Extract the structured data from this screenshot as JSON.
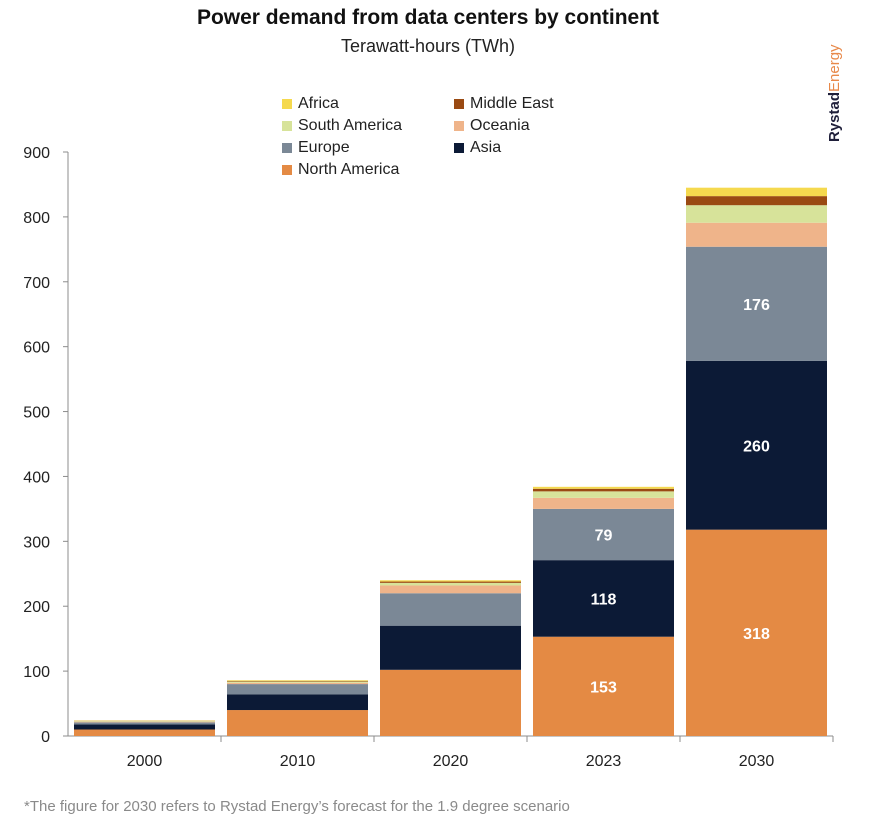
{
  "title": "Power demand from data centers by continent",
  "subtitle": "Terawatt-hours (TWh)",
  "brand": {
    "part1": "Rystad",
    "part2": "Energy"
  },
  "footnote": "*The figure for 2030 refers to Rystad Energy’s forecast for the 1.9 degree scenario",
  "legend": [
    {
      "name": "Africa",
      "color": "#f5d94e"
    },
    {
      "name": "Middle East",
      "color": "#9a4a12"
    },
    {
      "name": "South America",
      "color": "#d7e39a"
    },
    {
      "name": "Oceania",
      "color": "#efb48a"
    },
    {
      "name": "Europe",
      "color": "#7b8896"
    },
    {
      "name": "Asia",
      "color": "#0c1a36"
    },
    {
      "name": "North America",
      "color": "#e48a44"
    }
  ],
  "chart_data": {
    "type": "bar",
    "stacked": true,
    "categories": [
      "2000",
      "2010",
      "2020",
      "2023",
      "2030"
    ],
    "ylim": [
      0,
      900
    ],
    "yticks": [
      0,
      100,
      200,
      300,
      400,
      500,
      600,
      700,
      800,
      900
    ],
    "series": [
      {
        "name": "North America",
        "color": "#e48a44",
        "values": [
          10,
          40,
          102,
          153,
          318
        ],
        "labels": [
          "",
          "",
          "",
          "153",
          "318"
        ],
        "label_color": "#ffffff"
      },
      {
        "name": "Asia",
        "color": "#0c1a36",
        "values": [
          8,
          24,
          68,
          118,
          260
        ],
        "labels": [
          "",
          "",
          "",
          "118",
          "260"
        ],
        "label_color": "#ffffff"
      },
      {
        "name": "Europe",
        "color": "#7b8896",
        "values": [
          3,
          16,
          50,
          79,
          176
        ],
        "labels": [
          "",
          "",
          "",
          "79",
          "176"
        ],
        "label_color": "#ffffff"
      },
      {
        "name": "Oceania",
        "color": "#efb48a",
        "values": [
          1,
          2,
          12,
          17,
          37
        ],
        "labels": [
          "",
          "",
          "",
          "",
          ""
        ]
      },
      {
        "name": "South America",
        "color": "#d7e39a",
        "values": [
          1,
          2,
          4,
          10,
          27
        ],
        "labels": [
          "",
          "",
          "",
          "",
          ""
        ]
      },
      {
        "name": "Middle East",
        "color": "#9a4a12",
        "values": [
          0.5,
          1,
          2,
          4,
          14
        ],
        "labels": [
          "",
          "",
          "",
          "",
          ""
        ]
      },
      {
        "name": "Africa",
        "color": "#f5d94e",
        "values": [
          0.5,
          1,
          2,
          3,
          13
        ],
        "labels": [
          "",
          "",
          "",
          "",
          ""
        ]
      }
    ]
  }
}
